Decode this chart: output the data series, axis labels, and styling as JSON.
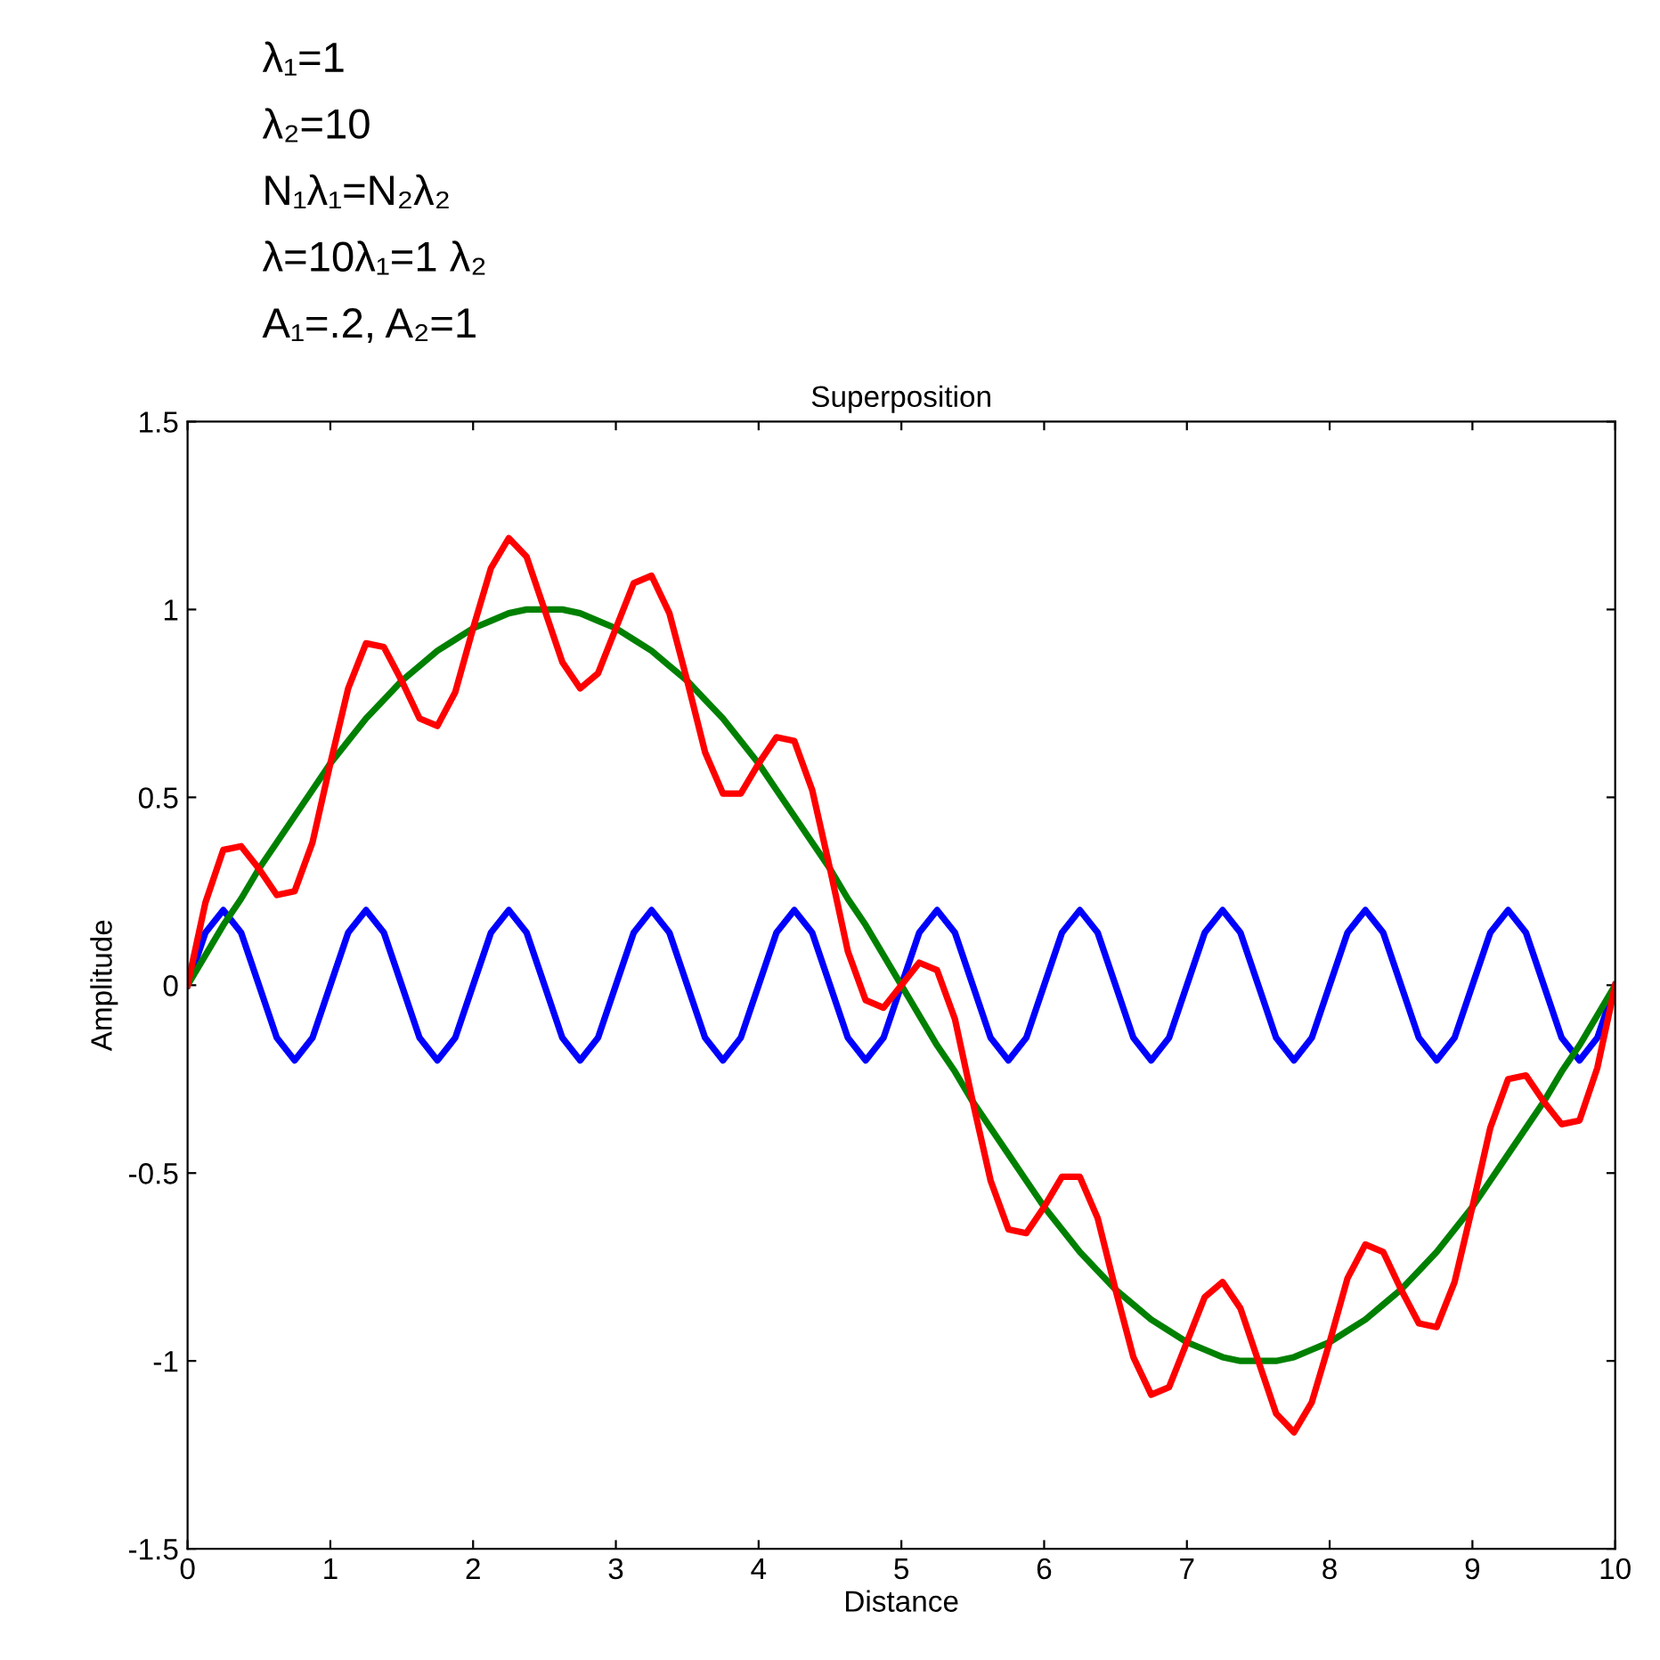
{
  "chart_data": {
    "type": "line",
    "title": "Superposition",
    "xlabel": "Distance",
    "ylabel": "Amplitude",
    "annotations": [
      "λ₁=1",
      "λ₂=10",
      "N₁λ₁=N₂λ₂",
      "λ=10λ₁=1 λ₂",
      "A₁=.2, A₂=1"
    ],
    "x": [
      0,
      0.125,
      0.25,
      0.375,
      0.5,
      0.625,
      0.75,
      0.875,
      1,
      1.125,
      1.25,
      1.375,
      1.5,
      1.625,
      1.75,
      1.875,
      2,
      2.125,
      2.25,
      2.375,
      2.5,
      2.625,
      2.75,
      2.875,
      3,
      3.125,
      3.25,
      3.375,
      3.5,
      3.625,
      3.75,
      3.875,
      4,
      4.125,
      4.25,
      4.375,
      4.5,
      4.625,
      4.75,
      4.875,
      5,
      5.125,
      5.25,
      5.375,
      5.5,
      5.625,
      5.75,
      5.875,
      6,
      6.125,
      6.25,
      6.375,
      6.5,
      6.625,
      6.75,
      6.875,
      7,
      7.125,
      7.25,
      7.375,
      7.5,
      7.625,
      7.75,
      7.875,
      8,
      8.125,
      8.25,
      8.375,
      8.5,
      8.625,
      8.75,
      8.875,
      9,
      9.125,
      9.25,
      9.375,
      9.5,
      9.625,
      9.75,
      9.875,
      10
    ],
    "series": [
      {
        "color": "#0000ff",
        "values": [
          0,
          0.14,
          0.2,
          0.14,
          0,
          -0.14,
          -0.2,
          -0.14,
          0,
          0.14,
          0.2,
          0.14,
          0,
          -0.14,
          -0.2,
          -0.14,
          0,
          0.14,
          0.2,
          0.14,
          0,
          -0.14,
          -0.2,
          -0.14,
          0,
          0.14,
          0.2,
          0.14,
          0,
          -0.14,
          -0.2,
          -0.14,
          0,
          0.14,
          0.2,
          0.14,
          0,
          -0.14,
          -0.2,
          -0.14,
          0,
          0.14,
          0.2,
          0.14,
          0,
          -0.14,
          -0.2,
          -0.14,
          0,
          0.14,
          0.2,
          0.14,
          0,
          -0.14,
          -0.2,
          -0.14,
          0,
          0.14,
          0.2,
          0.14,
          0,
          -0.14,
          -0.2,
          -0.14,
          0,
          0.14,
          0.2,
          0.14,
          0,
          -0.14,
          -0.2,
          -0.14,
          0,
          0.14,
          0.2,
          0.14,
          0,
          -0.14,
          -0.2,
          -0.14,
          0
        ]
      },
      {
        "color": "#008000",
        "values": [
          0,
          0.08,
          0.16,
          0.23,
          0.31,
          0.38,
          0.45,
          0.52,
          0.59,
          0.65,
          0.71,
          0.76,
          0.81,
          0.85,
          0.89,
          0.92,
          0.95,
          0.97,
          0.99,
          1.0,
          1,
          1.0,
          0.99,
          0.97,
          0.95,
          0.92,
          0.89,
          0.85,
          0.81,
          0.76,
          0.71,
          0.65,
          0.59,
          0.52,
          0.45,
          0.38,
          0.31,
          0.23,
          0.16,
          0.08,
          0,
          -0.08,
          -0.16,
          -0.23,
          -0.31,
          -0.38,
          -0.45,
          -0.52,
          -0.59,
          -0.65,
          -0.71,
          -0.76,
          -0.81,
          -0.85,
          -0.89,
          -0.92,
          -0.95,
          -0.97,
          -0.99,
          -1.0,
          -1,
          -1.0,
          -0.99,
          -0.97,
          -0.95,
          -0.92,
          -0.89,
          -0.85,
          -0.81,
          -0.76,
          -0.71,
          -0.65,
          -0.59,
          -0.52,
          -0.45,
          -0.38,
          -0.31,
          -0.23,
          -0.16,
          -0.08,
          0
        ]
      },
      {
        "color": "#ff0000",
        "values": [
          0,
          0.22,
          0.36,
          0.37,
          0.31,
          0.24,
          0.25,
          0.38,
          0.59,
          0.79,
          0.91,
          0.9,
          0.81,
          0.71,
          0.69,
          0.78,
          0.95,
          1.11,
          1.19,
          1.14,
          1.0,
          0.86,
          0.79,
          0.83,
          0.95,
          1.07,
          1.09,
          0.99,
          0.81,
          0.62,
          0.51,
          0.51,
          0.59,
          0.66,
          0.65,
          0.52,
          0.31,
          0.09,
          -0.04,
          -0.06,
          0,
          0.06,
          0.04,
          -0.09,
          -0.31,
          -0.52,
          -0.65,
          -0.66,
          -0.59,
          -0.51,
          -0.51,
          -0.62,
          -0.81,
          -0.99,
          -1.09,
          -1.07,
          -0.95,
          -0.83,
          -0.79,
          -0.86,
          -1.0,
          -1.14,
          -1.19,
          -1.11,
          -0.95,
          -0.78,
          -0.69,
          -0.71,
          -0.81,
          -0.9,
          -0.91,
          -0.79,
          -0.59,
          -0.38,
          -0.25,
          -0.24,
          -0.31,
          -0.37,
          -0.36,
          -0.22,
          0
        ]
      }
    ],
    "xlim": [
      0,
      10
    ],
    "xticks": [
      0,
      1,
      2,
      3,
      4,
      5,
      6,
      7,
      8,
      9,
      10
    ],
    "ylim": [
      -1.5,
      1.5
    ],
    "yticks": [
      {
        "value": -1.5,
        "label": "-1.5"
      },
      {
        "value": -1,
        "label": "-1"
      },
      {
        "value": -0.5,
        "label": "-0.5"
      },
      0,
      0.5,
      1,
      1.5
    ],
    "grid": false,
    "legend": false,
    "marker": "none",
    "line_style": "solid"
  }
}
